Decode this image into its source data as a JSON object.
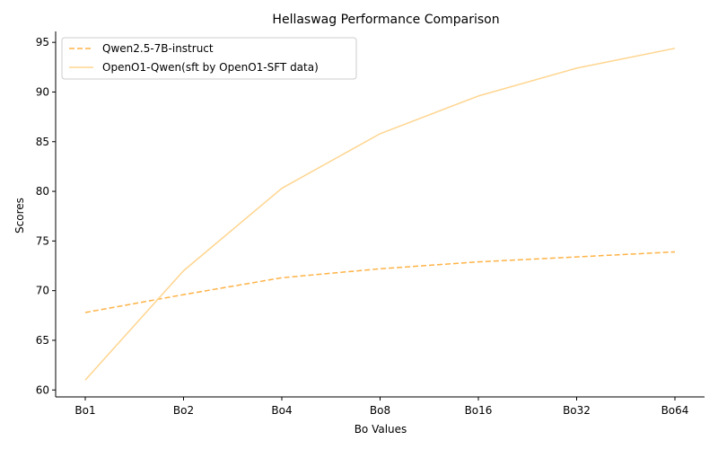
{
  "chart_data": {
    "type": "line",
    "title": "Hellaswag Performance Comparison",
    "xlabel": "Bo Values",
    "ylabel": "Scores",
    "categories": [
      "Bo1",
      "Bo2",
      "Bo4",
      "Bo8",
      "Bo16",
      "Bo32",
      "Bo64"
    ],
    "ylim": [
      59.3,
      96.1
    ],
    "yticks": [
      60,
      65,
      70,
      75,
      80,
      85,
      90,
      95
    ],
    "grid": false,
    "legend_position": "top-left",
    "series": [
      {
        "name": "Qwen2.5-7B-instruct",
        "values": [
          67.8,
          69.6,
          71.3,
          72.2,
          72.9,
          73.4,
          73.9
        ],
        "color": "#ffb347",
        "style": "dashed"
      },
      {
        "name": "OpenO1-Qwen(sft by OpenO1-SFT data)",
        "values": [
          61.0,
          72.0,
          80.3,
          85.8,
          89.6,
          92.4,
          94.4
        ],
        "color": "#ffd58f",
        "style": "solid"
      }
    ]
  }
}
